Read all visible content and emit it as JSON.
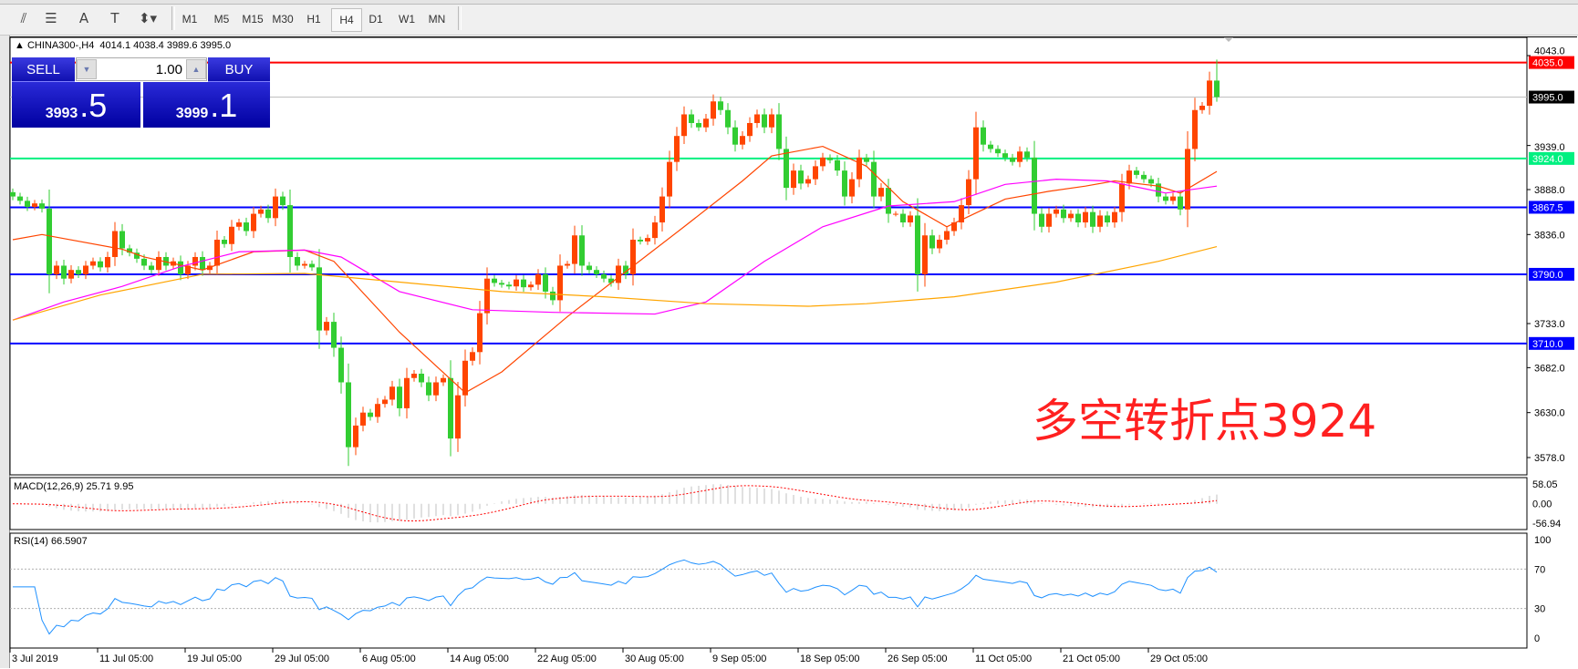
{
  "toolbar": {
    "tools": [
      {
        "icon": "elliott-wave-icon",
        "glyph": "⫽"
      },
      {
        "icon": "fibonacci-icon",
        "glyph": "☰"
      },
      {
        "icon": "text-icon",
        "glyph": "A"
      },
      {
        "icon": "text-label-icon",
        "glyph": "T"
      },
      {
        "icon": "arrows-dropdown-icon",
        "glyph": "⬍▾"
      }
    ],
    "timeframes": [
      "M1",
      "M5",
      "M15",
      "M30",
      "H1",
      "H4",
      "D1",
      "W1",
      "MN"
    ],
    "selected_timeframe": "H4"
  },
  "chart": {
    "symbol_header": "CHINA300-,H4  4014.1 4038.4 3989.6 3995.0",
    "header_icon": "triangle-up-icon"
  },
  "trade_panel": {
    "sell_label": "SELL",
    "buy_label": "BUY",
    "lot_value": "1.00",
    "sell_price_main": "3993",
    "sell_price_frac": ".5",
    "buy_price_main": "3999",
    "buy_price_frac": ".1"
  },
  "annotation": "多空转折点3924",
  "chart_data": {
    "type": "candlestick",
    "colors": {
      "bull": "#FF4500",
      "bear": "#32CD32"
    },
    "first_open": 3885,
    "last_candle": {
      "open": 4014.1,
      "high": 4038.4,
      "low": 3989.6,
      "close": 3995.0
    },
    "closes": [
      3880,
      3875,
      3868,
      3872,
      3866,
      3790,
      3800,
      3785,
      3795,
      3790,
      3800,
      3805,
      3798,
      3810,
      3840,
      3820,
      3815,
      3808,
      3800,
      3795,
      3810,
      3800,
      3805,
      3790,
      3800,
      3810,
      3795,
      3800,
      3830,
      3825,
      3845,
      3850,
      3840,
      3860,
      3865,
      3855,
      3880,
      3870,
      3810,
      3800,
      3802,
      3798,
      3725,
      3735,
      3705,
      3665,
      3590,
      3615,
      3630,
      3625,
      3640,
      3645,
      3660,
      3635,
      3670,
      3675,
      3665,
      3650,
      3665,
      3670,
      3600,
      3650,
      3690,
      3700,
      3745,
      3785,
      3780,
      3778,
      3776,
      3784,
      3775,
      3778,
      3790,
      3770,
      3760,
      3800,
      3802,
      3835,
      3800,
      3795,
      3790,
      3785,
      3780,
      3800,
      3790,
      3830,
      3828,
      3832,
      3850,
      3880,
      3920,
      3950,
      3975,
      3965,
      3960,
      3970,
      3990,
      3980,
      3960,
      3940,
      3950,
      3965,
      3975,
      3960,
      3975,
      3935,
      3890,
      3910,
      3895,
      3900,
      3915,
      3925,
      3922,
      3910,
      3880,
      3900,
      3925,
      3920,
      3880,
      3890,
      3860,
      3860,
      3850,
      3858,
      3790,
      3835,
      3820,
      3830,
      3840,
      3850,
      3870,
      3900,
      3960,
      3940,
      3935,
      3930,
      3925,
      3920,
      3932,
      3925,
      3860,
      3845,
      3860,
      3865,
      3855,
      3860,
      3850,
      3862,
      3845,
      3858,
      3850,
      3862,
      3895,
      3910,
      3905,
      3900,
      3895,
      3880,
      3875,
      3880,
      3865,
      3935,
      3980,
      3985,
      4014.1,
      3995.0
    ],
    "moving_averages": [
      {
        "color": "#FF4500",
        "points": [
          [
            0,
            3830
          ],
          [
            4,
            3836
          ],
          [
            15,
            3819
          ],
          [
            18,
            3810
          ],
          [
            26,
            3795
          ],
          [
            33,
            3816
          ],
          [
            40,
            3818
          ],
          [
            44,
            3805
          ],
          [
            53,
            3723
          ],
          [
            62,
            3653
          ],
          [
            67,
            3677
          ],
          [
            76,
            3741
          ],
          [
            84,
            3793
          ],
          [
            92,
            3845
          ],
          [
            100,
            3898
          ],
          [
            104,
            3927
          ],
          [
            111,
            3938
          ],
          [
            117,
            3915
          ],
          [
            122,
            3874
          ],
          [
            128,
            3845
          ],
          [
            131,
            3857
          ],
          [
            136,
            3877
          ],
          [
            142,
            3886
          ],
          [
            147,
            3892
          ],
          [
            151,
            3898
          ],
          [
            157,
            3892
          ],
          [
            160,
            3884
          ],
          [
            165,
            3909
          ]
        ]
      },
      {
        "color": "#FF00FF",
        "points": [
          [
            0,
            3737
          ],
          [
            7,
            3758
          ],
          [
            15,
            3776
          ],
          [
            23,
            3799
          ],
          [
            31,
            3816
          ],
          [
            40,
            3818
          ],
          [
            45,
            3810
          ],
          [
            53,
            3770
          ],
          [
            63,
            3749
          ],
          [
            74,
            3746
          ],
          [
            88,
            3744
          ],
          [
            95,
            3758
          ],
          [
            103,
            3805
          ],
          [
            111,
            3845
          ],
          [
            120,
            3869
          ],
          [
            129,
            3874
          ],
          [
            136,
            3894
          ],
          [
            143,
            3900
          ],
          [
            150,
            3898
          ],
          [
            158,
            3884
          ],
          [
            165,
            3892
          ]
        ]
      },
      {
        "color": "#FFA500",
        "points": [
          [
            0,
            3737
          ],
          [
            12,
            3766
          ],
          [
            26,
            3790
          ],
          [
            40,
            3791
          ],
          [
            53,
            3781
          ],
          [
            67,
            3770
          ],
          [
            81,
            3764
          ],
          [
            95,
            3756
          ],
          [
            109,
            3753
          ],
          [
            117,
            3756
          ],
          [
            129,
            3764
          ],
          [
            143,
            3781
          ],
          [
            157,
            3805
          ],
          [
            165,
            3822
          ]
        ]
      }
    ],
    "price_axis": {
      "ticks": [
        4043.0,
        3939.0,
        3888.0,
        3836.0,
        3733.0,
        3682.0,
        3630.0,
        3578.0
      ],
      "range": [
        3578,
        4043
      ]
    },
    "horizontal_lines": [
      {
        "price": 4035.0,
        "label": "4035.0",
        "color": "#FF0000",
        "label_bg": "#FF0000",
        "label_fg": "#FFFFFF"
      },
      {
        "price": 3995.0,
        "label": "3995.0",
        "color": "#C0C0C0",
        "label_bg": "#000000",
        "label_fg": "#FFFFFF"
      },
      {
        "price": 3924.0,
        "label": "3924.0",
        "color": "#00F080",
        "label_bg": "#00F080",
        "label_fg": "#FFFFFF"
      },
      {
        "price": 3867.5,
        "label": "3867.5",
        "color": "#0000FF",
        "label_bg": "#0000FF",
        "label_fg": "#FFFFFF"
      },
      {
        "price": 3790.0,
        "label": "3790.0",
        "color": "#0000FF",
        "label_bg": "#0000FF",
        "label_fg": "#FFFFFF"
      },
      {
        "price": 3710.0,
        "label": "3710.0",
        "color": "#0000FF",
        "label_bg": "#0000FF",
        "label_fg": "#FFFFFF"
      }
    ],
    "date_axis": [
      {
        "i": 0,
        "label": "3 Jul 2019"
      },
      {
        "i": 12,
        "label": "11 Jul 05:00"
      },
      {
        "i": 24,
        "label": "19 Jul 05:00"
      },
      {
        "i": 36,
        "label": "29 Jul 05:00"
      },
      {
        "i": 48,
        "label": "6 Aug 05:00"
      },
      {
        "i": 60,
        "label": "14 Aug 05:00"
      },
      {
        "i": 72,
        "label": "22 Aug 05:00"
      },
      {
        "i": 84,
        "label": "30 Aug 05:00"
      },
      {
        "i": 96,
        "label": "9 Sep 05:00"
      },
      {
        "i": 108,
        "label": "18 Sep 05:00"
      },
      {
        "i": 120,
        "label": "26 Sep 05:00"
      },
      {
        "i": 132,
        "label": "11 Oct 05:00"
      },
      {
        "i": 144,
        "label": "21 Oct 05:00"
      },
      {
        "i": 156,
        "label": "29 Oct 05:00"
      }
    ],
    "macd": {
      "label": "MACD(12,26,9) 25.71 9.95",
      "fast": 12,
      "slow": 26,
      "signal": 9,
      "axis": [
        "58.05",
        "0.00",
        "-56.94"
      ],
      "range": [
        -56.94,
        58.05
      ],
      "hist_color": "#C0C0C0",
      "signal_color": "#FF0000"
    },
    "rsi": {
      "label": "RSI(14) 66.5907",
      "period": 14,
      "axis": [
        "100",
        "70",
        "30",
        "0"
      ],
      "levels": [
        70,
        30
      ],
      "color": "#1E90FF"
    }
  }
}
